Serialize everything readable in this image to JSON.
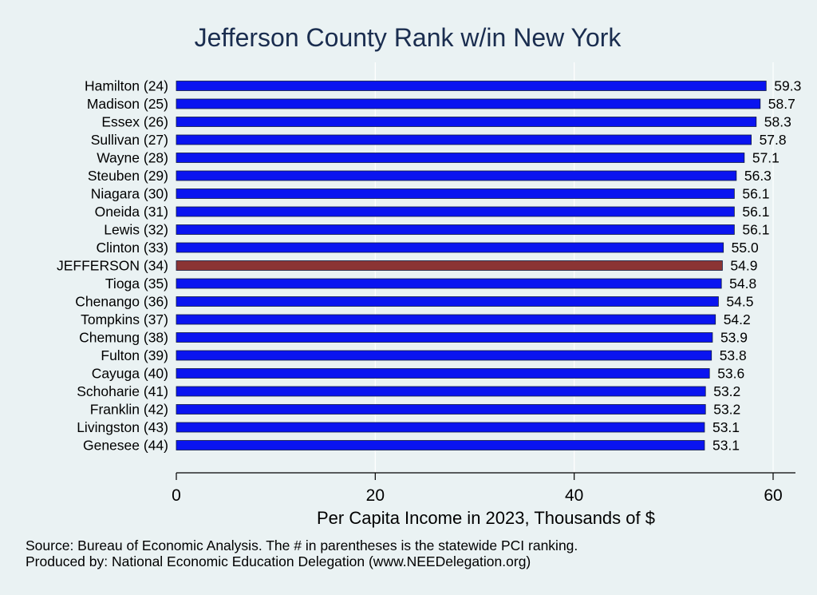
{
  "chart_data": {
    "type": "bar",
    "orientation": "horizontal",
    "title": "Jefferson County Rank w/in New York",
    "xlabel": "Per Capita Income in 2023, Thousands of $",
    "ylabel": "",
    "xlim": [
      0,
      62
    ],
    "xticks": [
      0,
      20,
      40,
      60
    ],
    "grid": true,
    "legend": "none",
    "categories": [
      "Hamilton (24)",
      "Madison (25)",
      "Essex (26)",
      "Sullivan (27)",
      "Wayne (28)",
      "Steuben (29)",
      "Niagara (30)",
      "Oneida (31)",
      "Lewis (32)",
      "Clinton (33)",
      "JEFFERSON (34)",
      "Tioga (35)",
      "Chenango (36)",
      "Tompkins (37)",
      "Chemung (38)",
      "Fulton (39)",
      "Cayuga (40)",
      "Schoharie (41)",
      "Franklin (42)",
      "Livingston (43)",
      "Genesee (44)"
    ],
    "values": [
      59.3,
      58.7,
      58.3,
      57.8,
      57.1,
      56.3,
      56.1,
      56.1,
      56.1,
      55.0,
      54.9,
      54.8,
      54.5,
      54.2,
      53.9,
      53.8,
      53.6,
      53.2,
      53.2,
      53.1,
      53.1
    ],
    "value_labels": [
      "59.3",
      "58.7",
      "58.3",
      "57.8",
      "57.1",
      "56.3",
      "56.1",
      "56.1",
      "56.1",
      "55.0",
      "54.9",
      "54.8",
      "54.5",
      "54.2",
      "53.9",
      "53.8",
      "53.6",
      "53.2",
      "53.2",
      "53.1",
      "53.1"
    ],
    "highlight_category": "JEFFERSON (34)",
    "colors": {
      "bar": "#0a14f0",
      "highlight": "#8b3434",
      "bar_edge": "#101a40",
      "grid": "#ffffff",
      "background": "#eaf2f3",
      "title": "#1a2d4f"
    }
  },
  "footer": {
    "source_line": "Source: Bureau of Economic Analysis. The # in parentheses is the statewide PCI ranking.",
    "produced_line": "Produced by: National Economic Education Delegation (www.NEEDelegation.org)"
  }
}
